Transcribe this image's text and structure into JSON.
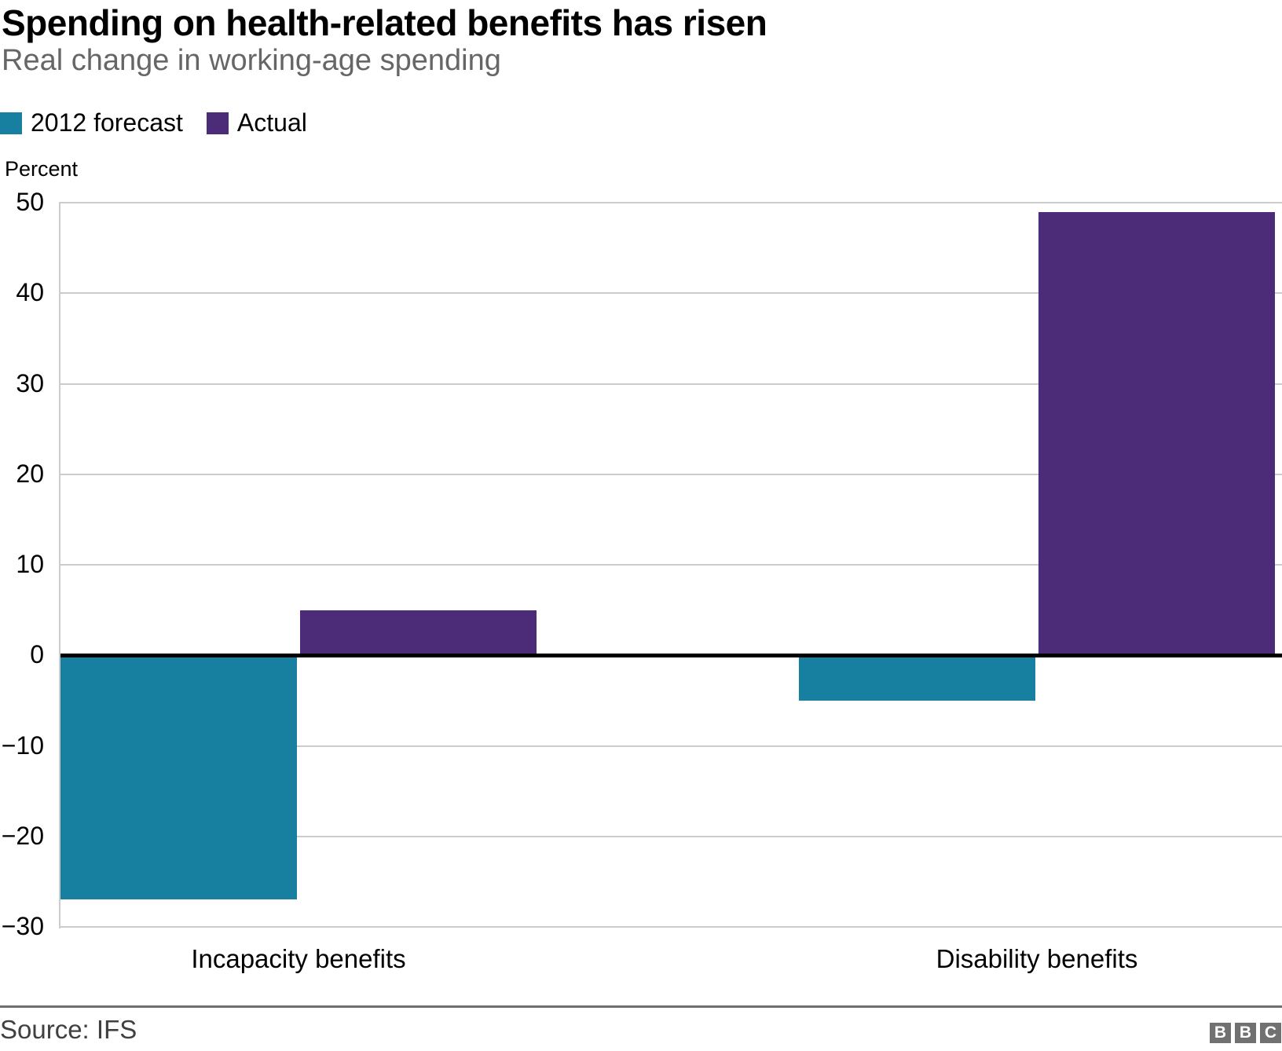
{
  "header": {
    "title": "Spending on health-related benefits has risen",
    "subtitle": "Real change in working-age spending"
  },
  "axis": {
    "unit_label": "Percent"
  },
  "chart_data": {
    "type": "bar",
    "categories": [
      "Incapacity benefits",
      "Disability benefits"
    ],
    "series": [
      {
        "name": "2012 forecast",
        "color": "#1780A0",
        "values": [
          -27,
          -5
        ]
      },
      {
        "name": "Actual",
        "color": "#4C2C78",
        "values": [
          5,
          49
        ]
      }
    ],
    "title": "Spending on health-related benefits has risen",
    "subtitle": "Real change in working-age spending",
    "xlabel": "",
    "ylabel": "Percent",
    "ylim": [
      -30,
      50
    ],
    "ytick_step": 10,
    "yticks": [
      50,
      40,
      30,
      20,
      10,
      0,
      -10,
      -20,
      -30
    ],
    "ytick_labels": [
      "50",
      "40",
      "30",
      "20",
      "10",
      "0",
      "−10",
      "−20",
      "−30"
    ],
    "grid": "horizontal",
    "legend_position": "top-left",
    "zero_line": true
  },
  "footer": {
    "source": "Source: IFS",
    "logo_letters": [
      "B",
      "B",
      "C"
    ]
  }
}
